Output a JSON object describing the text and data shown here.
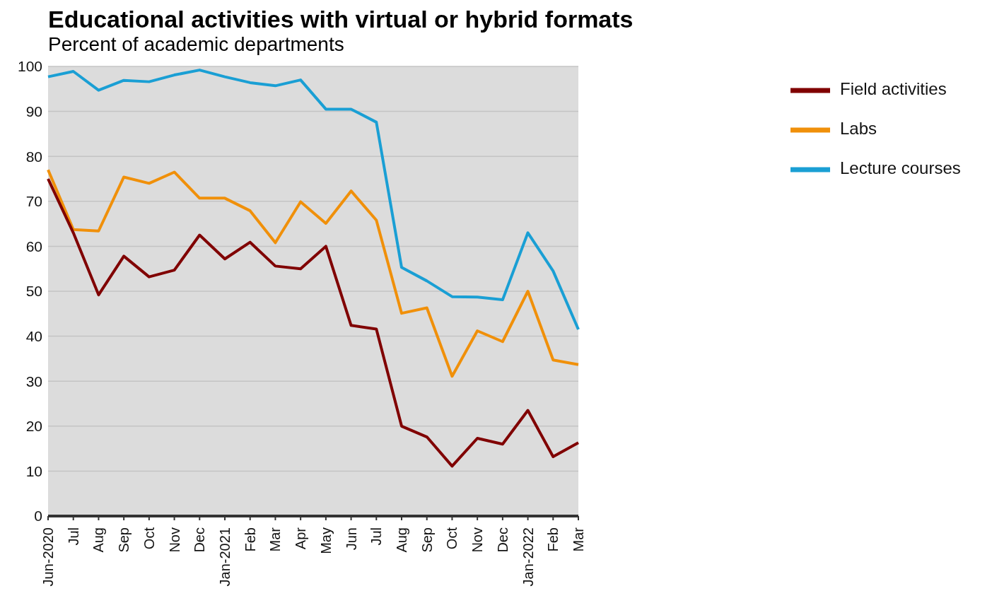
{
  "chart_data": {
    "type": "line",
    "title": "Educational activities with virtual or hybrid formats",
    "subtitle": "Percent of academic departments",
    "categories": [
      "Jun-2020",
      "Jul",
      "Aug",
      "Sep",
      "Oct",
      "Nov",
      "Dec",
      "Jan-2021",
      "Feb",
      "Mar",
      "Apr",
      "May",
      "Jun",
      "Jul",
      "Aug",
      "Sep",
      "Oct",
      "Nov",
      "Dec",
      "Jan-2022",
      "Feb",
      "Mar"
    ],
    "series": [
      {
        "name": "Lecture courses",
        "color": "#1a9fd4",
        "values": [
          97.7,
          98.9,
          94.7,
          96.9,
          96.6,
          98.1,
          99.2,
          97.7,
          96.4,
          95.7,
          97.0,
          90.5,
          90.5,
          87.6,
          55.3,
          52.3,
          48.8,
          48.7,
          48.1,
          63.0,
          54.5,
          41.5
        ]
      },
      {
        "name": "Labs",
        "color": "#f0900a",
        "values": [
          77.0,
          63.7,
          63.4,
          75.4,
          74.0,
          76.5,
          70.7,
          70.7,
          67.9,
          60.8,
          69.9,
          65.1,
          72.3,
          65.8,
          45.1,
          46.3,
          31.1,
          41.2,
          38.8,
          50.0,
          34.7,
          33.7
        ]
      },
      {
        "name": "Field activities",
        "color": "#800000",
        "values": [
          75.0,
          63.0,
          49.2,
          57.8,
          53.2,
          54.7,
          62.5,
          57.2,
          60.9,
          55.6,
          55.0,
          60.0,
          42.4,
          41.6,
          20.0,
          17.6,
          11.1,
          17.3,
          16.0,
          23.5,
          13.2,
          16.3
        ]
      }
    ],
    "ylim": [
      0,
      100
    ],
    "yticks": [
      0,
      10,
      20,
      30,
      40,
      50,
      60,
      70,
      80,
      90,
      100
    ],
    "grid": "y",
    "legend": "top right",
    "marker": "none",
    "line_style": "solid"
  }
}
